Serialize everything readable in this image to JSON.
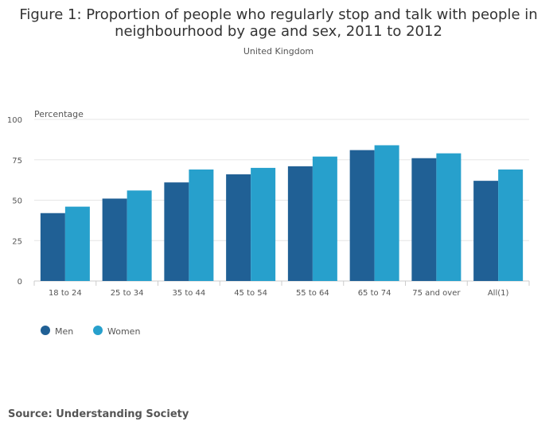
{
  "chart_data": {
    "type": "bar",
    "title_lines": [
      "Figure 1: Proportion of people who regularly stop and talk with people in",
      "neighbourhood by age and sex, 2011 to 2012"
    ],
    "subtitle": "United Kingdom",
    "ylabel": "Percentage",
    "xlabel": "",
    "ylim": [
      0,
      100
    ],
    "yticks": [
      0,
      25,
      50,
      75,
      100
    ],
    "grid": true,
    "legend_position": "bottom-left",
    "categories": [
      "18 to 24",
      "25 to 34",
      "35 to 44",
      "45 to 54",
      "55 to 64",
      "65 to 74",
      "75 and over",
      "All(1)"
    ],
    "series": [
      {
        "name": "Men",
        "color": "#206095",
        "values": [
          42,
          51,
          61,
          66,
          71,
          81,
          76,
          62
        ]
      },
      {
        "name": "Women",
        "color": "#27a0cc",
        "values": [
          46,
          56,
          69,
          70,
          77,
          84,
          79,
          69
        ]
      }
    ]
  },
  "source": "Source: Understanding Society"
}
